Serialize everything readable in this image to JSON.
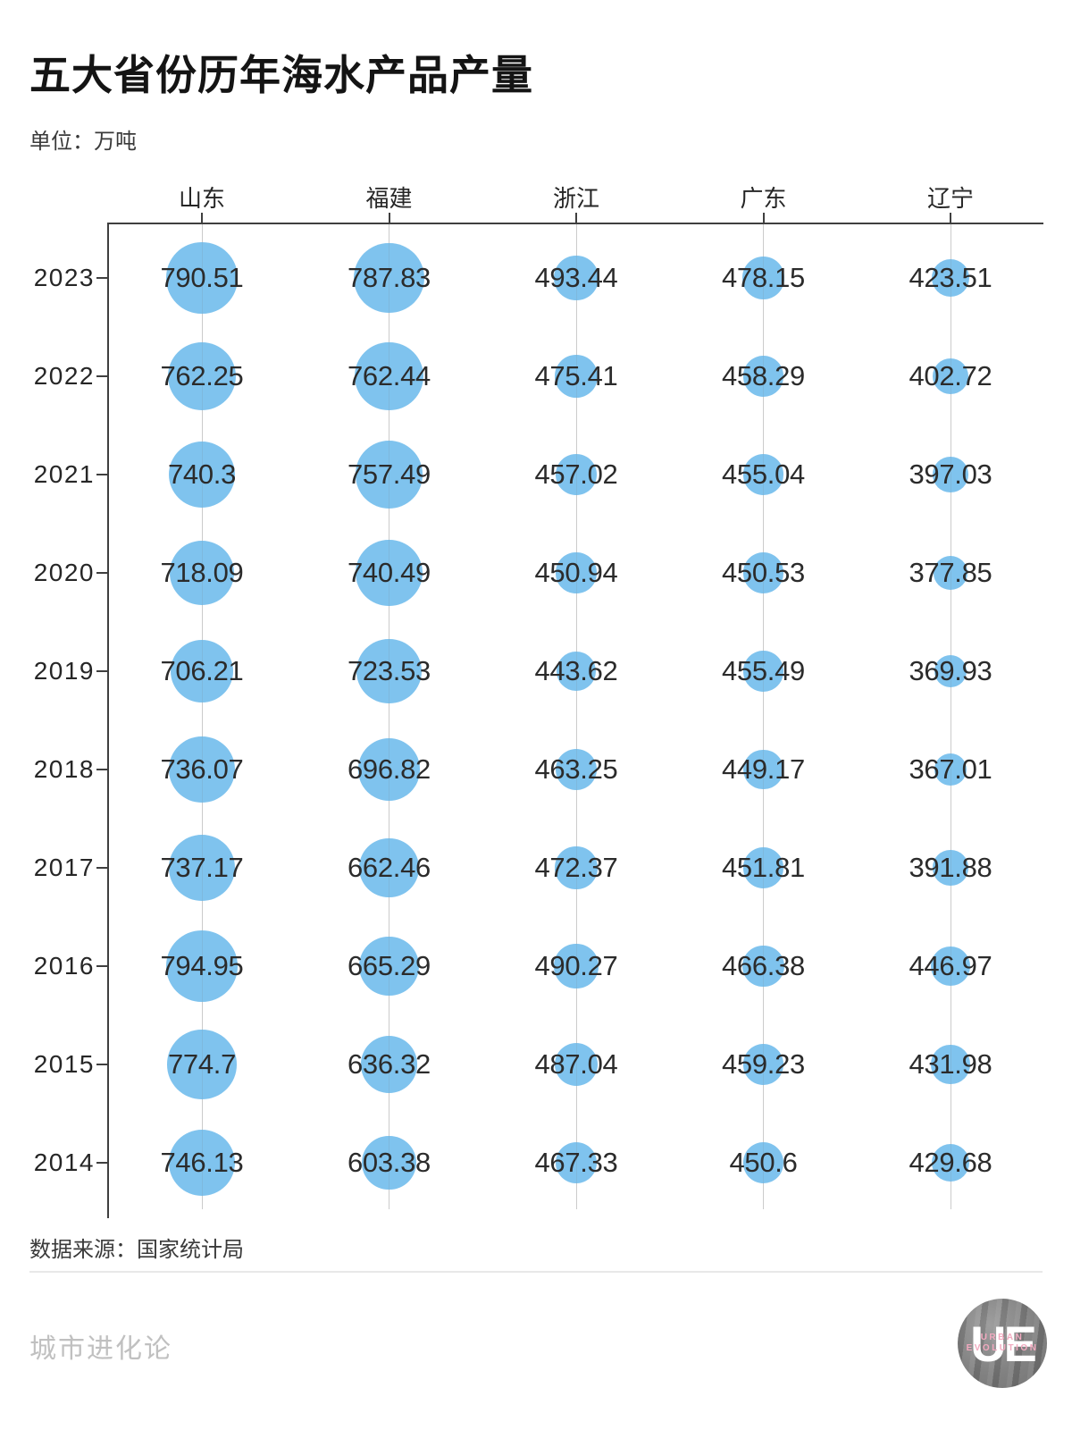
{
  "title": "五大省份历年海水产品产量",
  "unit_label": "单位：万吨",
  "source_label": "数据来源：国家统计局",
  "footer": {
    "brand": "城市进化论",
    "logo": {
      "monogram": "UE",
      "line1": "URBAN",
      "line2": "EVOLUTION"
    }
  },
  "colors": {
    "bubble": "#7FC3EE",
    "axis": "#3f3f3f",
    "value_text": "#2b2b2b",
    "footer_text": "#c0c0c0",
    "logo_accent": "#f2a9bf"
  },
  "chart_data": {
    "type": "scatter",
    "subtype": "bubble-matrix",
    "unit": "万吨",
    "columns": [
      "山东",
      "福建",
      "浙江",
      "广东",
      "辽宁"
    ],
    "years": [
      "2023",
      "2022",
      "2021",
      "2020",
      "2019",
      "2018",
      "2017",
      "2016",
      "2015",
      "2014"
    ],
    "rows": [
      {
        "year": "2023",
        "values": [
          "790.51",
          "787.83",
          "493.44",
          "478.15",
          "423.51"
        ]
      },
      {
        "year": "2022",
        "values": [
          "762.25",
          "762.44",
          "475.41",
          "458.29",
          "402.72"
        ]
      },
      {
        "year": "2021",
        "values": [
          "740.3",
          "757.49",
          "457.02",
          "455.04",
          "397.03"
        ]
      },
      {
        "year": "2020",
        "values": [
          "718.09",
          "740.49",
          "450.94",
          "450.53",
          "377.85"
        ]
      },
      {
        "year": "2019",
        "values": [
          "706.21",
          "723.53",
          "443.62",
          "455.49",
          "369.93"
        ]
      },
      {
        "year": "2018",
        "values": [
          "736.07",
          "696.82",
          "463.25",
          "449.17",
          "367.01"
        ]
      },
      {
        "year": "2017",
        "values": [
          "737.17",
          "662.46",
          "472.37",
          "451.81",
          "391.88"
        ]
      },
      {
        "year": "2016",
        "values": [
          "794.95",
          "665.29",
          "490.27",
          "466.38",
          "446.97"
        ]
      },
      {
        "year": "2015",
        "values": [
          "774.7",
          "636.32",
          "487.04",
          "459.23",
          "431.98"
        ]
      },
      {
        "year": "2014",
        "values": [
          "746.13",
          "603.38",
          "467.33",
          "450.6",
          "429.68"
        ]
      }
    ],
    "bubble_size_rule": "diameter_px ≈ value / 10",
    "legend_position": "none",
    "grid": "vertical-only"
  }
}
